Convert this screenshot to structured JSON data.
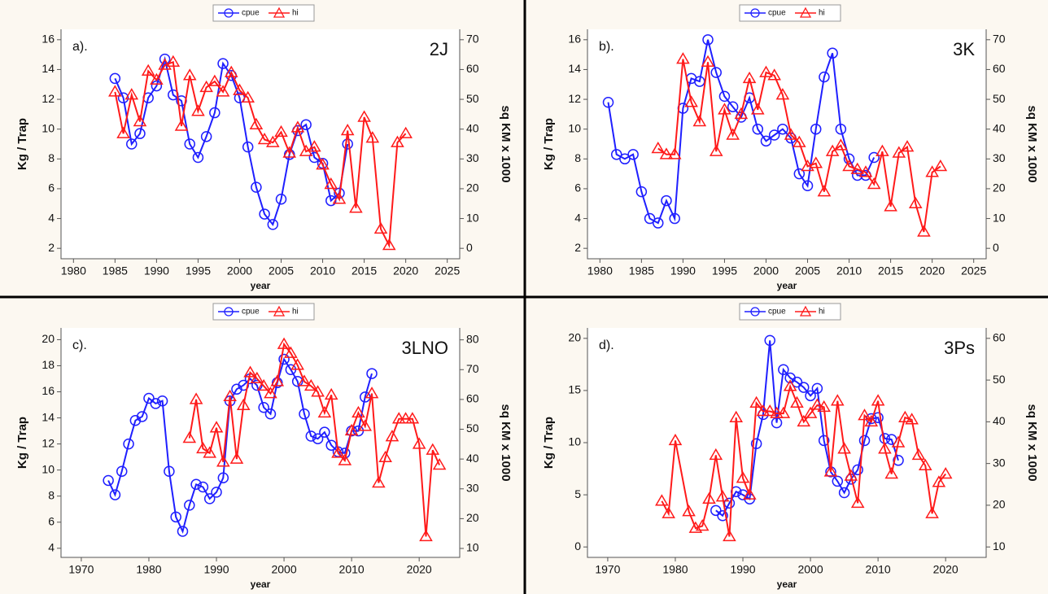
{
  "chart_data": [
    {
      "type": "line",
      "panel_label": "a).",
      "region": "2J",
      "x_label": "year",
      "y_label": "Kg / Trap",
      "y2_label": "sq KM x 1000",
      "xlim": [
        1978.5,
        2026.5
      ],
      "xticks": [
        1980,
        1985,
        1990,
        1995,
        2000,
        2005,
        2010,
        2015,
        2020,
        2025
      ],
      "ylim": [
        1.3,
        16.7
      ],
      "yticks": [
        2,
        4,
        6,
        8,
        10,
        12,
        14,
        16
      ],
      "y2lim": [
        -3.5,
        73.5
      ],
      "y2ticks": [
        0,
        10,
        20,
        30,
        40,
        50,
        60,
        70
      ],
      "series": [
        {
          "name": "cpue",
          "color": "#1f1fff",
          "marker": "circle",
          "axis": "y",
          "x": [
            1985,
            1986,
            1987,
            1988,
            1989,
            1990,
            1991,
            1992,
            1993,
            1994,
            1995,
            1996,
            1997,
            1998,
            1999,
            2000,
            2001,
            2002,
            2003,
            2004,
            2005,
            2006,
            2007,
            2008,
            2009,
            2010,
            2011,
            2012,
            2013
          ],
          "values": [
            13.4,
            12.1,
            9.0,
            9.7,
            12.1,
            12.9,
            14.7,
            12.3,
            11.9,
            9.0,
            8.1,
            9.5,
            11.1,
            14.4,
            13.6,
            12.1,
            8.8,
            6.1,
            4.3,
            3.6,
            5.3,
            8.3,
            9.9,
            10.3,
            8.1,
            7.7,
            5.2,
            5.7,
            9.0
          ]
        },
        {
          "name": "hi",
          "color": "#ff1a1a",
          "marker": "triangle",
          "axis": "y2",
          "x": [
            1985,
            1986,
            1987,
            1988,
            1989,
            1990,
            1991,
            1992,
            1993,
            1994,
            1995,
            1996,
            1997,
            1998,
            1999,
            2000,
            2001,
            2002,
            2003,
            2004,
            2005,
            2006,
            2007,
            2008,
            2009,
            2010,
            2011,
            2012,
            2013,
            2014,
            2015,
            2016,
            2017,
            2018,
            2019,
            2020
          ],
          "values": [
            52.5,
            38.5,
            51.5,
            42.5,
            59.5,
            56.5,
            61.5,
            62.5,
            41,
            58,
            46,
            54,
            56,
            52.5,
            59,
            53,
            50.5,
            41.5,
            36.5,
            35.5,
            39,
            32,
            40.5,
            32.5,
            34,
            28,
            21.5,
            16.5,
            39.5,
            13.5,
            44,
            37,
            6.5,
            1,
            35.5,
            38.5
          ]
        }
      ]
    },
    {
      "type": "line",
      "panel_label": "b).",
      "region": "3K",
      "x_label": "year",
      "y_label": "Kg / Trap",
      "y2_label": "sq KM x 1000",
      "xlim": [
        1978.5,
        2026.5
      ],
      "xticks": [
        1980,
        1985,
        1990,
        1995,
        2000,
        2005,
        2010,
        2015,
        2020,
        2025
      ],
      "ylim": [
        1.3,
        16.7
      ],
      "yticks": [
        2,
        4,
        6,
        8,
        10,
        12,
        14,
        16
      ],
      "y2lim": [
        -3.5,
        73.5
      ],
      "y2ticks": [
        0,
        10,
        20,
        30,
        40,
        50,
        60,
        70
      ],
      "series": [
        {
          "name": "cpue",
          "color": "#1f1fff",
          "marker": "circle",
          "axis": "y",
          "x": [
            1981,
            1982,
            1983,
            1984,
            1985,
            1986,
            1987,
            1988,
            1989,
            1990,
            1991,
            1992,
            1993,
            1994,
            1995,
            1996,
            1997,
            1998,
            1999,
            2000,
            2001,
            2002,
            2003,
            2004,
            2005,
            2006,
            2007,
            2008,
            2009,
            2010,
            2011,
            2012,
            2013
          ],
          "values": [
            11.8,
            8.3,
            8.0,
            8.3,
            5.8,
            4.0,
            3.7,
            5.2,
            4.0,
            11.4,
            13.4,
            13.2,
            16.0,
            13.8,
            12.2,
            11.5,
            10.8,
            12.1,
            10.0,
            9.2,
            9.6,
            10.0,
            9.4,
            7.0,
            6.2,
            10.0,
            13.5,
            15.1,
            10.0,
            8.0,
            6.9,
            6.9,
            8.1
          ]
        },
        {
          "name": "hi",
          "color": "#ff1a1a",
          "marker": "triangle",
          "axis": "y2",
          "x": [
            1987,
            1988,
            1989,
            1990,
            1991,
            1992,
            1993,
            1994,
            1995,
            1996,
            1997,
            1998,
            1999,
            2000,
            2001,
            2002,
            2003,
            2004,
            2005,
            2006,
            2007,
            2008,
            2009,
            2010,
            2011,
            2012,
            2013,
            2014,
            2015,
            2016,
            2017,
            2018,
            2019,
            2020,
            2021
          ],
          "values": [
            33.5,
            31.5,
            31.5,
            63.5,
            49,
            42.5,
            62.5,
            32.5,
            46.5,
            38,
            45,
            57,
            46.5,
            59,
            58,
            51.5,
            38,
            35.5,
            27.5,
            28.5,
            19,
            32.5,
            34.5,
            27.5,
            26.5,
            25.5,
            21.5,
            32.5,
            14,
            32,
            34,
            15,
            5.5,
            25.5,
            27.5
          ]
        }
      ]
    },
    {
      "type": "line",
      "panel_label": "c).",
      "region": "3LNO",
      "x_label": "year",
      "y_label": "Kg / Trap",
      "y2_label": "sq KM x 1000",
      "xlim": [
        1967,
        2026
      ],
      "xticks": [
        1970,
        1980,
        1990,
        2000,
        2010,
        2020
      ],
      "ylim": [
        3.3,
        20.9
      ],
      "yticks": [
        4,
        6,
        8,
        10,
        12,
        14,
        16,
        18,
        20
      ],
      "y2lim": [
        7,
        84
      ],
      "y2ticks": [
        10,
        20,
        30,
        40,
        50,
        60,
        70,
        80
      ],
      "series": [
        {
          "name": "cpue",
          "color": "#1f1fff",
          "marker": "circle",
          "axis": "y",
          "x": [
            1974,
            1975,
            1976,
            1977,
            1978,
            1979,
            1980,
            1981,
            1982,
            1983,
            1984,
            1985,
            1986,
            1987,
            1988,
            1989,
            1990,
            1991,
            1992,
            1993,
            1994,
            1995,
            1996,
            1997,
            1998,
            1999,
            2000,
            2001,
            2002,
            2003,
            2004,
            2005,
            2006,
            2007,
            2008,
            2009,
            2010,
            2011,
            2012,
            2013
          ],
          "values": [
            9.2,
            8.1,
            9.9,
            12.0,
            13.8,
            14.1,
            15.5,
            15.1,
            15.3,
            9.9,
            6.4,
            5.3,
            7.3,
            8.9,
            8.7,
            7.8,
            8.3,
            9.4,
            15.3,
            16.2,
            16.5,
            17.0,
            16.5,
            14.8,
            14.3,
            16.7,
            18.5,
            17.7,
            16.8,
            14.3,
            12.6,
            12.4,
            12.9,
            11.9,
            11.4,
            11.3,
            13.0,
            13.0,
            15.6,
            17.4
          ]
        },
        {
          "name": "hi",
          "color": "#ff1a1a",
          "marker": "triangle",
          "axis": "y2",
          "x": [
            1986,
            1987,
            1988,
            1989,
            1990,
            1991,
            1992,
            1993,
            1994,
            1995,
            1996,
            1997,
            1998,
            1999,
            2000,
            2001,
            2002,
            2003,
            2004,
            2005,
            2006,
            2007,
            2008,
            2009,
            2010,
            2011,
            2012,
            2013,
            2014,
            2015,
            2016,
            2017,
            2018,
            2019,
            2020,
            2021,
            2022,
            2023
          ],
          "values": [
            47,
            60,
            43.5,
            42,
            50.5,
            39,
            61,
            40,
            58,
            69,
            67,
            64.5,
            62,
            66,
            78.5,
            75.5,
            71.5,
            66,
            64.5,
            62.5,
            55.5,
            61.5,
            42,
            39.5,
            49.5,
            55.5,
            51,
            62,
            32,
            40.5,
            47.5,
            53.5,
            53.5,
            53.5,
            45,
            14,
            43,
            38
          ]
        }
      ]
    },
    {
      "type": "line",
      "panel_label": "d).",
      "region": "3Ps",
      "x_label": "year",
      "y_label": "Kg / Trap",
      "y2_label": "sq KM x 1000",
      "xlim": [
        1967,
        2026
      ],
      "xticks": [
        1970,
        1980,
        1990,
        2000,
        2010,
        2020
      ],
      "ylim": [
        -1,
        21
      ],
      "yticks": [
        0,
        5,
        10,
        15,
        20
      ],
      "y2lim": [
        7.5,
        62.5
      ],
      "y2ticks": [
        10,
        20,
        30,
        40,
        50,
        60
      ],
      "series": [
        {
          "name": "cpue",
          "color": "#1f1fff",
          "marker": "circle",
          "axis": "y",
          "x": [
            1986,
            1987,
            1988,
            1989,
            1990,
            1991,
            1992,
            1993,
            1994,
            1995,
            1996,
            1997,
            1998,
            1999,
            2000,
            2001,
            2002,
            2003,
            2004,
            2005,
            2006,
            2007,
            2008,
            2009,
            2010,
            2011,
            2012,
            2013
          ],
          "values": [
            3.5,
            3.0,
            4.2,
            5.3,
            5.0,
            4.6,
            9.9,
            12.7,
            19.8,
            11.9,
            17.0,
            16.2,
            15.8,
            15.3,
            14.5,
            15.2,
            10.2,
            7.2,
            6.3,
            5.2,
            6.5,
            7.4,
            10.2,
            12.3,
            12.4,
            10.4,
            10.3,
            8.3
          ]
        },
        {
          "name": "hi",
          "color": "#ff1a1a",
          "marker": "triangle",
          "axis": "y2",
          "x": [
            1978,
            1979,
            1980,
            1982,
            1983,
            1984,
            1985,
            1986,
            1987,
            1988,
            1989,
            1990,
            1991,
            1992,
            1993,
            1994,
            1995,
            1996,
            1997,
            1998,
            1999,
            2000,
            2001,
            2002,
            2003,
            2004,
            2005,
            2006,
            2007,
            2008,
            2009,
            2010,
            2011,
            2012,
            2013,
            2014,
            2015,
            2016,
            2017,
            2018,
            2019,
            2020
          ],
          "values": [
            21,
            18,
            35.5,
            18.5,
            14.5,
            15,
            21.5,
            32,
            22,
            12.5,
            41,
            26.5,
            22.5,
            44.5,
            42.5,
            42.5,
            42,
            42,
            48.5,
            44.5,
            40,
            42,
            44,
            43.5,
            28,
            45,
            33.5,
            27,
            20.5,
            41.5,
            40,
            45,
            33.5,
            27.5,
            35,
            41,
            40.5,
            32,
            29.5,
            18,
            25.5,
            27.5
          ]
        }
      ]
    }
  ]
}
